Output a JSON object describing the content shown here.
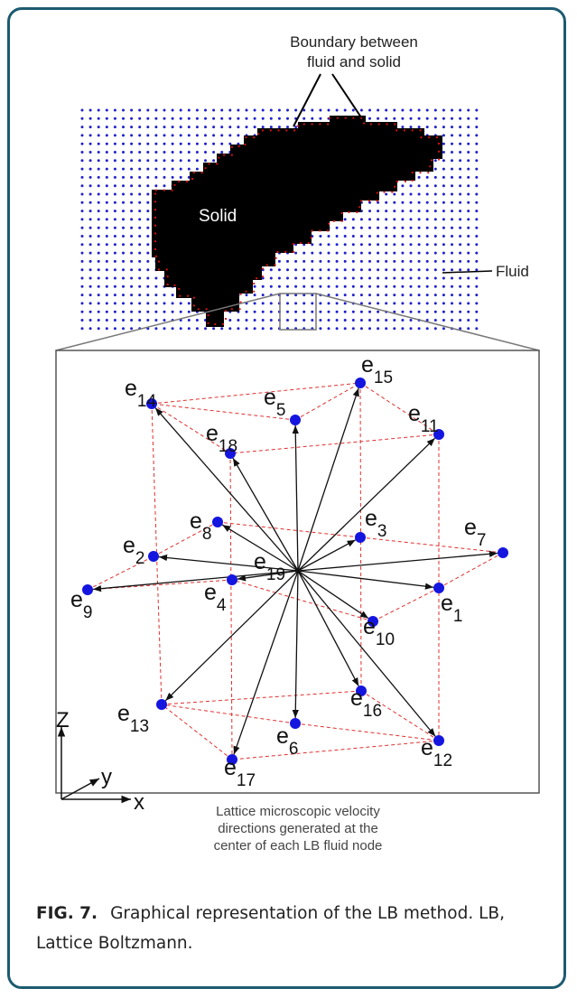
{
  "figure": {
    "top_panel": {
      "boundary_label": [
        "Boundary between",
        "fluid and solid"
      ],
      "solid_label": "Solid",
      "fluid_label": "Fluid"
    },
    "lattice": {
      "base": "e",
      "nodes": [
        "14",
        "15",
        "5",
        "11",
        "18",
        "8",
        "3",
        "7",
        "2",
        "19",
        "9",
        "4",
        "1",
        "10",
        "16",
        "13",
        "6",
        "12",
        "17"
      ],
      "axes": {
        "z": "Z",
        "y": "y",
        "x": "x"
      }
    },
    "inner_caption": [
      "Lattice microscopic velocity",
      "directions generated at the",
      "center of each LB fluid node"
    ]
  },
  "caption": {
    "label": "FIG. 7.",
    "text": "Graphical representation of the LB method. LB, Lattice Boltzmann."
  }
}
